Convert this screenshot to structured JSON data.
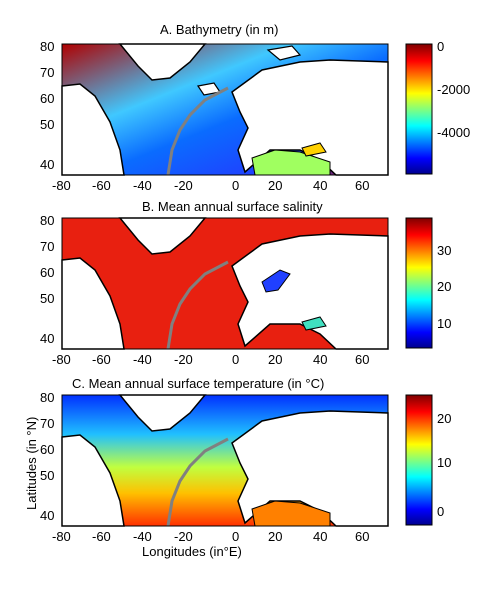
{
  "figure": {
    "x_axis_label": "Longitudes (in°E)",
    "y_axis_label": "Latitudes (in °N)",
    "x_ticks": [
      "-80",
      "-60",
      "-40",
      "-20",
      "0",
      "20",
      "40",
      "60"
    ],
    "y_ticks": [
      "40",
      "50",
      "60",
      "70",
      "80"
    ]
  },
  "panels": [
    {
      "title": "A. Bathymetry (in m)",
      "variable": "bathymetry",
      "colorbar_ticks": [
        "0",
        "-2000",
        "-4000"
      ],
      "colorbar_range": [
        -6000,
        0
      ],
      "colormap": "jet"
    },
    {
      "title": "B. Mean annual surface salinity",
      "variable": "salinity",
      "colorbar_ticks": [
        "30",
        "20",
        "10"
      ],
      "colorbar_range": [
        2,
        39
      ],
      "colormap": "jet"
    },
    {
      "title": "C. Mean annual surface temperature (in °C)",
      "variable": "temperature",
      "colorbar_ticks": [
        "20",
        "10",
        "0"
      ],
      "colorbar_range": [
        -3,
        25
      ],
      "colormap": "jet"
    }
  ],
  "colors": {
    "land": "#ffffff",
    "coastline": "#000000",
    "ridge_overlay": "#808080",
    "jet": [
      "#00008f",
      "#0000ff",
      "#00ffff",
      "#ffff00",
      "#ff0000",
      "#800000"
    ]
  }
}
